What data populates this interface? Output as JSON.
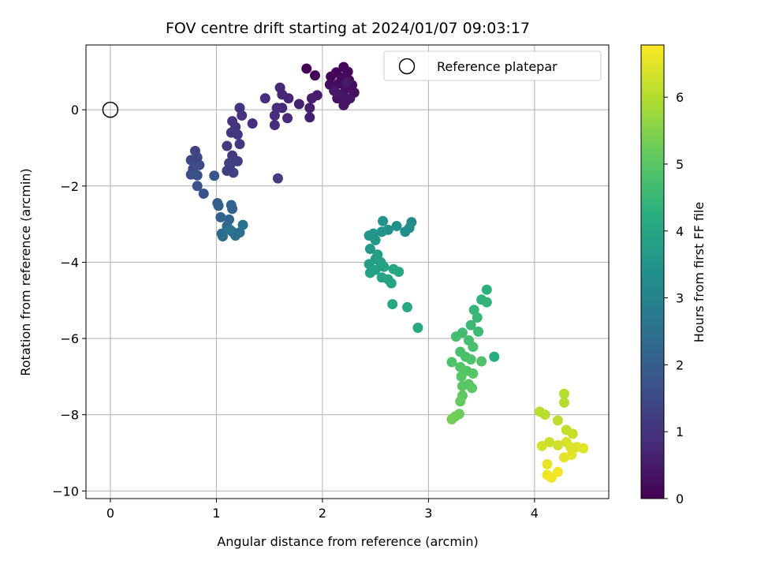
{
  "chart_data": {
    "type": "scatter",
    "title": "FOV centre drift starting at 2024/01/07 09:03:17",
    "xlabel": "Angular distance from reference (arcmin)",
    "ylabel": "Rotation from reference (arcmin)",
    "xlim": [
      -0.23,
      4.7
    ],
    "ylim": [
      -10.2,
      1.7
    ],
    "xticks": [
      0,
      1,
      2,
      3,
      4
    ],
    "yticks": [
      -10,
      -8,
      -6,
      -4,
      -2,
      0
    ],
    "grid": true,
    "legend": {
      "placement": "top-right",
      "entries": [
        "Reference platepar"
      ]
    },
    "reference_point": {
      "x": 0,
      "y": 0
    },
    "colorbar": {
      "label": "Hours from first FF file",
      "range": [
        0,
        6.78
      ],
      "ticks": [
        0,
        1,
        2,
        3,
        4,
        5,
        6
      ],
      "colormap": "viridis"
    },
    "points": [
      {
        "x": 1.85,
        "y": 1.08,
        "t": 0.02
      },
      {
        "x": 1.93,
        "y": 0.9,
        "t": 0.05
      },
      {
        "x": 2.08,
        "y": 0.87,
        "t": 0.08
      },
      {
        "x": 2.13,
        "y": 0.98,
        "t": 0.1
      },
      {
        "x": 2.2,
        "y": 1.12,
        "t": 0.12
      },
      {
        "x": 2.24,
        "y": 1.0,
        "t": 0.14
      },
      {
        "x": 2.18,
        "y": 0.85,
        "t": 0.16
      },
      {
        "x": 2.25,
        "y": 0.78,
        "t": 0.18
      },
      {
        "x": 2.28,
        "y": 0.65,
        "t": 0.2
      },
      {
        "x": 2.15,
        "y": 0.68,
        "t": 0.22
      },
      {
        "x": 2.07,
        "y": 0.66,
        "t": 0.24
      },
      {
        "x": 2.22,
        "y": 0.55,
        "t": 0.26
      },
      {
        "x": 2.3,
        "y": 0.45,
        "t": 0.28
      },
      {
        "x": 2.19,
        "y": 0.42,
        "t": 0.3
      },
      {
        "x": 2.14,
        "y": 0.3,
        "t": 0.32
      },
      {
        "x": 2.22,
        "y": 0.22,
        "t": 0.34
      },
      {
        "x": 2.26,
        "y": 0.3,
        "t": 0.36
      },
      {
        "x": 2.2,
        "y": 0.12,
        "t": 0.38
      },
      {
        "x": 2.16,
        "y": 0.4,
        "t": 0.4
      },
      {
        "x": 2.11,
        "y": 0.5,
        "t": 0.42
      },
      {
        "x": 2.23,
        "y": 0.72,
        "t": 0.44
      },
      {
        "x": 1.95,
        "y": 0.38,
        "t": 0.5
      },
      {
        "x": 1.9,
        "y": 0.3,
        "t": 0.55
      },
      {
        "x": 1.88,
        "y": 0.05,
        "t": 0.58
      },
      {
        "x": 1.88,
        "y": -0.2,
        "t": 0.6
      },
      {
        "x": 1.78,
        "y": 0.15,
        "t": 0.65
      },
      {
        "x": 1.68,
        "y": 0.3,
        "t": 0.7
      },
      {
        "x": 1.62,
        "y": 0.4,
        "t": 0.72
      },
      {
        "x": 1.6,
        "y": 0.58,
        "t": 0.75
      },
      {
        "x": 1.62,
        "y": 0.05,
        "t": 0.78
      },
      {
        "x": 1.67,
        "y": -0.22,
        "t": 0.8
      },
      {
        "x": 1.57,
        "y": 0.05,
        "t": 0.82
      },
      {
        "x": 1.55,
        "y": -0.15,
        "t": 0.85
      },
      {
        "x": 1.55,
        "y": -0.4,
        "t": 0.88
      },
      {
        "x": 1.46,
        "y": 0.3,
        "t": 0.9
      },
      {
        "x": 1.34,
        "y": -0.36,
        "t": 0.92
      },
      {
        "x": 1.22,
        "y": 0.05,
        "t": 0.95
      },
      {
        "x": 1.24,
        "y": -0.15,
        "t": 0.98
      },
      {
        "x": 1.15,
        "y": -0.3,
        "t": 1.0
      },
      {
        "x": 1.18,
        "y": -0.45,
        "t": 1.02
      },
      {
        "x": 1.14,
        "y": -0.6,
        "t": 1.05
      },
      {
        "x": 1.2,
        "y": -0.65,
        "t": 1.08
      },
      {
        "x": 1.22,
        "y": -0.9,
        "t": 1.1
      },
      {
        "x": 1.1,
        "y": -0.95,
        "t": 1.12
      },
      {
        "x": 1.15,
        "y": -1.2,
        "t": 1.15
      },
      {
        "x": 1.58,
        "y": -1.8,
        "t": 1.18
      },
      {
        "x": 1.2,
        "y": -1.35,
        "t": 1.2
      },
      {
        "x": 1.13,
        "y": -1.45,
        "t": 1.22
      },
      {
        "x": 1.1,
        "y": -1.6,
        "t": 1.25
      },
      {
        "x": 1.16,
        "y": -1.65,
        "t": 1.28
      },
      {
        "x": 1.12,
        "y": -1.4,
        "t": 1.3
      },
      {
        "x": 0.8,
        "y": -1.08,
        "t": 1.35
      },
      {
        "x": 0.82,
        "y": -1.25,
        "t": 1.4
      },
      {
        "x": 0.76,
        "y": -1.32,
        "t": 1.45
      },
      {
        "x": 0.84,
        "y": -1.45,
        "t": 1.5
      },
      {
        "x": 0.78,
        "y": -1.55,
        "t": 1.55
      },
      {
        "x": 0.76,
        "y": -1.7,
        "t": 1.6
      },
      {
        "x": 0.82,
        "y": -1.72,
        "t": 1.65
      },
      {
        "x": 0.82,
        "y": -2.0,
        "t": 1.7
      },
      {
        "x": 0.88,
        "y": -2.2,
        "t": 1.75
      },
      {
        "x": 0.98,
        "y": -1.73,
        "t": 1.85
      },
      {
        "x": 1.01,
        "y": -2.45,
        "t": 2.0
      },
      {
        "x": 1.02,
        "y": -2.52,
        "t": 2.05
      },
      {
        "x": 1.14,
        "y": -2.5,
        "t": 2.1
      },
      {
        "x": 1.15,
        "y": -2.6,
        "t": 2.12
      },
      {
        "x": 1.04,
        "y": -2.82,
        "t": 2.15
      },
      {
        "x": 1.12,
        "y": -2.88,
        "t": 2.2
      },
      {
        "x": 1.1,
        "y": -3.05,
        "t": 2.25
      },
      {
        "x": 1.15,
        "y": -3.2,
        "t": 2.3
      },
      {
        "x": 1.05,
        "y": -3.25,
        "t": 2.35
      },
      {
        "x": 1.06,
        "y": -3.32,
        "t": 2.4
      },
      {
        "x": 1.18,
        "y": -3.3,
        "t": 2.45
      },
      {
        "x": 1.22,
        "y": -3.22,
        "t": 2.5
      },
      {
        "x": 1.25,
        "y": -3.02,
        "t": 2.55
      },
      {
        "x": 1.13,
        "y": -3.15,
        "t": 2.6
      },
      {
        "x": 2.84,
        "y": -2.95,
        "t": 3.2
      },
      {
        "x": 2.82,
        "y": -3.1,
        "t": 3.25
      },
      {
        "x": 2.78,
        "y": -3.2,
        "t": 3.3
      },
      {
        "x": 2.7,
        "y": -3.05,
        "t": 3.35
      },
      {
        "x": 2.62,
        "y": -3.15,
        "t": 3.4
      },
      {
        "x": 2.57,
        "y": -2.92,
        "t": 3.45
      },
      {
        "x": 2.56,
        "y": -3.2,
        "t": 3.5
      },
      {
        "x": 2.48,
        "y": -3.25,
        "t": 3.55
      },
      {
        "x": 2.44,
        "y": -3.3,
        "t": 3.55
      },
      {
        "x": 2.5,
        "y": -3.42,
        "t": 3.6
      },
      {
        "x": 2.45,
        "y": -3.65,
        "t": 3.65
      },
      {
        "x": 2.52,
        "y": -3.8,
        "t": 3.7
      },
      {
        "x": 2.5,
        "y": -3.92,
        "t": 3.75
      },
      {
        "x": 2.55,
        "y": -4.0,
        "t": 3.8
      },
      {
        "x": 2.44,
        "y": -4.05,
        "t": 3.82
      },
      {
        "x": 2.5,
        "y": -4.2,
        "t": 3.85
      },
      {
        "x": 2.45,
        "y": -4.28,
        "t": 3.88
      },
      {
        "x": 2.58,
        "y": -4.12,
        "t": 3.9
      },
      {
        "x": 2.56,
        "y": -4.4,
        "t": 3.92
      },
      {
        "x": 2.62,
        "y": -4.45,
        "t": 3.95
      },
      {
        "x": 2.65,
        "y": -4.55,
        "t": 3.98
      },
      {
        "x": 2.67,
        "y": -4.18,
        "t": 4.0
      },
      {
        "x": 2.72,
        "y": -4.25,
        "t": 4.02
      },
      {
        "x": 2.66,
        "y": -5.1,
        "t": 4.05
      },
      {
        "x": 2.8,
        "y": -5.18,
        "t": 4.08
      },
      {
        "x": 2.9,
        "y": -5.72,
        "t": 4.1
      },
      {
        "x": 3.62,
        "y": -6.48,
        "t": 4.25
      },
      {
        "x": 3.55,
        "y": -4.72,
        "t": 4.3
      },
      {
        "x": 3.5,
        "y": -4.98,
        "t": 4.35
      },
      {
        "x": 3.55,
        "y": -5.05,
        "t": 4.4
      },
      {
        "x": 3.43,
        "y": -5.25,
        "t": 4.45
      },
      {
        "x": 3.46,
        "y": -5.45,
        "t": 4.5
      },
      {
        "x": 3.4,
        "y": -5.65,
        "t": 4.55
      },
      {
        "x": 3.47,
        "y": -5.82,
        "t": 4.6
      },
      {
        "x": 3.32,
        "y": -5.85,
        "t": 4.65
      },
      {
        "x": 3.26,
        "y": -5.95,
        "t": 4.7
      },
      {
        "x": 3.38,
        "y": -6.05,
        "t": 4.72
      },
      {
        "x": 3.42,
        "y": -6.22,
        "t": 4.75
      },
      {
        "x": 3.3,
        "y": -6.35,
        "t": 4.78
      },
      {
        "x": 3.35,
        "y": -6.48,
        "t": 4.8
      },
      {
        "x": 3.4,
        "y": -6.55,
        "t": 4.82
      },
      {
        "x": 3.5,
        "y": -6.6,
        "t": 4.85
      },
      {
        "x": 3.22,
        "y": -6.62,
        "t": 4.88
      },
      {
        "x": 3.3,
        "y": -6.75,
        "t": 4.9
      },
      {
        "x": 3.36,
        "y": -6.85,
        "t": 4.92
      },
      {
        "x": 3.42,
        "y": -6.92,
        "t": 4.95
      },
      {
        "x": 3.31,
        "y": -7.0,
        "t": 4.98
      },
      {
        "x": 3.38,
        "y": -7.2,
        "t": 5.0
      },
      {
        "x": 3.32,
        "y": -7.25,
        "t": 5.02
      },
      {
        "x": 3.41,
        "y": -7.3,
        "t": 5.05
      },
      {
        "x": 3.32,
        "y": -7.5,
        "t": 5.1
      },
      {
        "x": 3.3,
        "y": -7.65,
        "t": 5.15
      },
      {
        "x": 3.29,
        "y": -7.98,
        "t": 5.2
      },
      {
        "x": 3.25,
        "y": -8.05,
        "t": 5.25
      },
      {
        "x": 3.22,
        "y": -8.12,
        "t": 5.3
      },
      {
        "x": 4.28,
        "y": -7.45,
        "t": 6.0
      },
      {
        "x": 4.28,
        "y": -7.68,
        "t": 6.02
      },
      {
        "x": 4.05,
        "y": -7.92,
        "t": 6.05
      },
      {
        "x": 4.1,
        "y": -8.0,
        "t": 6.08
      },
      {
        "x": 4.22,
        "y": -8.15,
        "t": 6.1
      },
      {
        "x": 4.3,
        "y": -8.4,
        "t": 6.15
      },
      {
        "x": 4.36,
        "y": -8.5,
        "t": 6.2
      },
      {
        "x": 4.14,
        "y": -8.72,
        "t": 6.25
      },
      {
        "x": 4.22,
        "y": -8.8,
        "t": 6.3
      },
      {
        "x": 4.07,
        "y": -8.82,
        "t": 6.35
      },
      {
        "x": 4.3,
        "y": -8.72,
        "t": 6.4
      },
      {
        "x": 4.34,
        "y": -8.85,
        "t": 6.42
      },
      {
        "x": 4.4,
        "y": -8.85,
        "t": 6.45
      },
      {
        "x": 4.46,
        "y": -8.88,
        "t": 6.48
      },
      {
        "x": 4.35,
        "y": -9.05,
        "t": 6.5
      },
      {
        "x": 4.28,
        "y": -9.12,
        "t": 6.52
      },
      {
        "x": 4.12,
        "y": -9.3,
        "t": 6.55
      },
      {
        "x": 4.12,
        "y": -9.58,
        "t": 6.6
      },
      {
        "x": 4.16,
        "y": -9.65,
        "t": 6.65
      },
      {
        "x": 4.22,
        "y": -9.5,
        "t": 6.7
      }
    ]
  }
}
